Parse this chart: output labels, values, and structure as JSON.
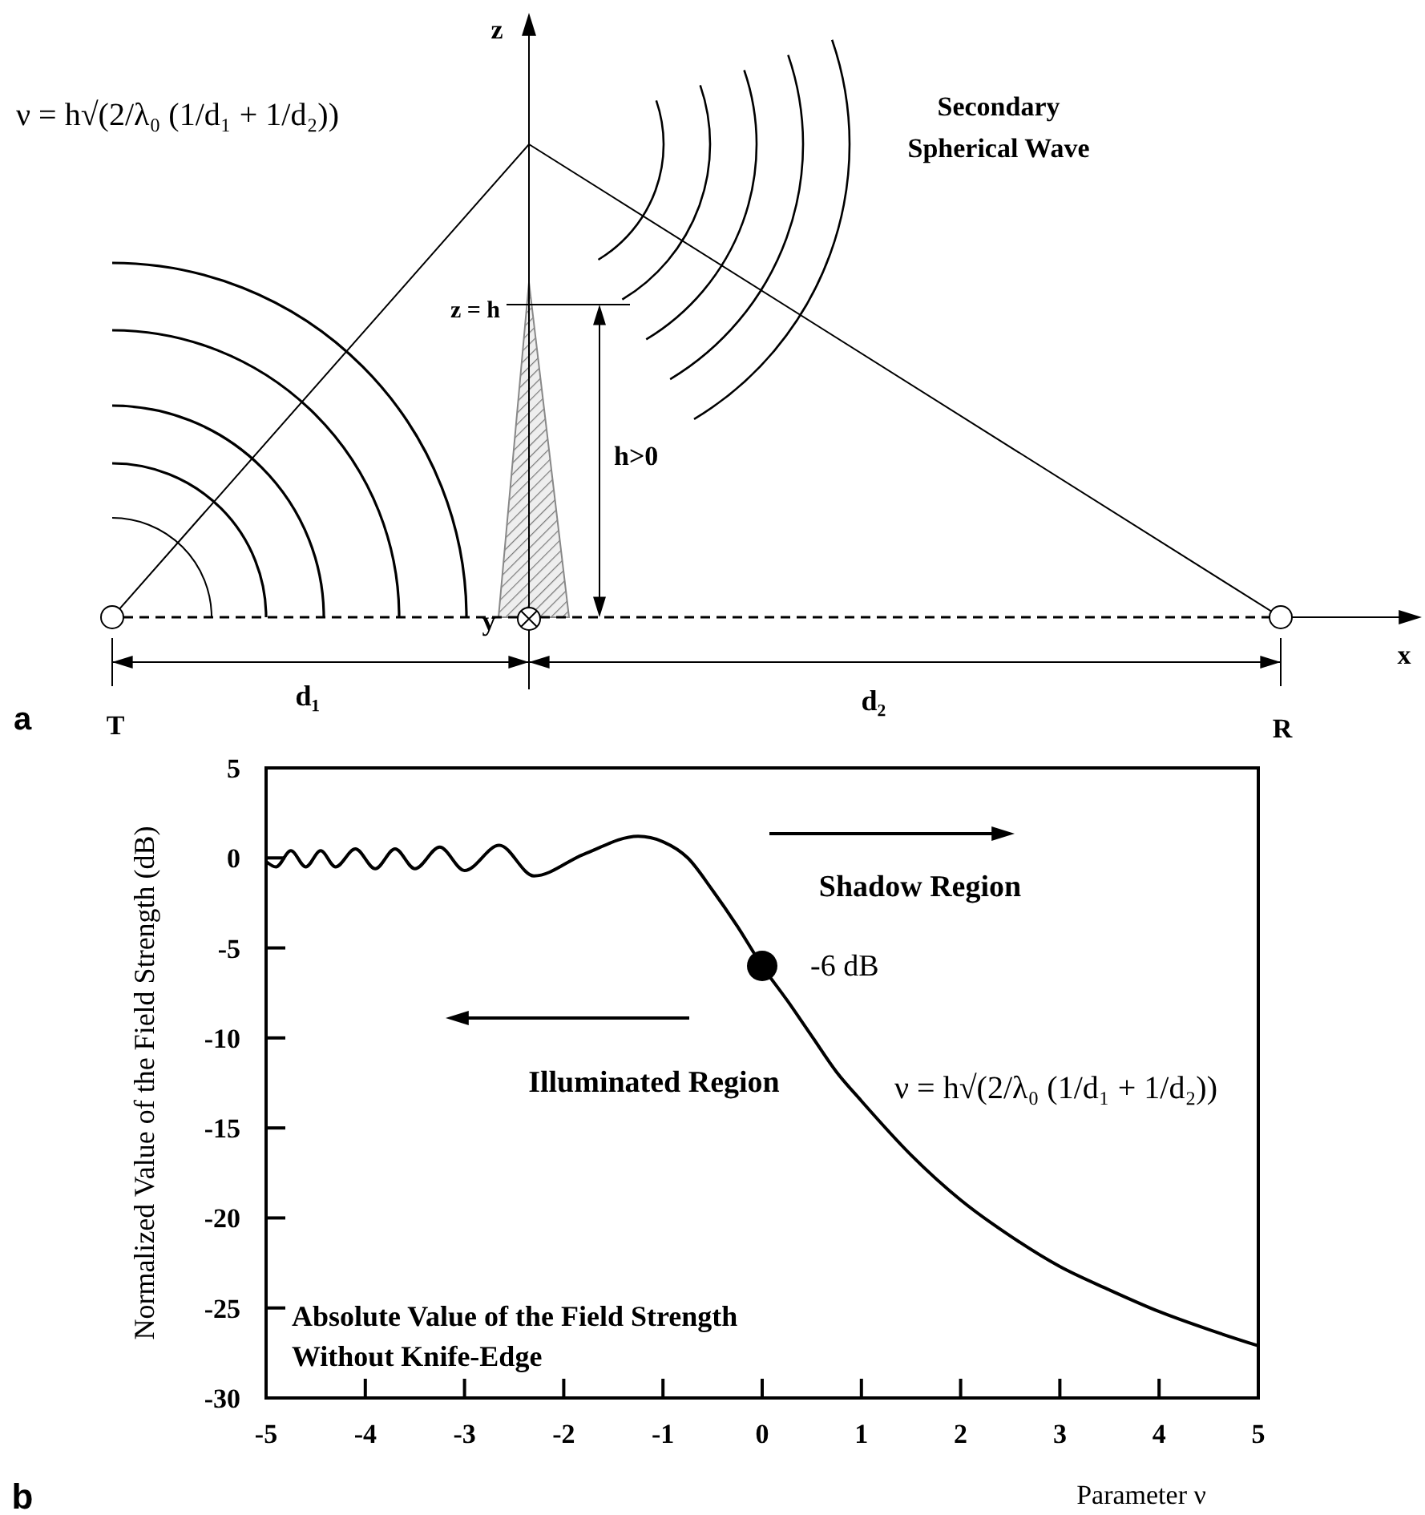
{
  "chart_data": [
    {
      "type": "other",
      "annotations": [
        "ν = h√(2/λ₀ (1/d₁ + 1/d₂))",
        "Secondary Spherical Wave",
        "z",
        "x",
        "y",
        "z = h",
        "h>0",
        "d₁",
        "d₂",
        "T",
        "R",
        "a"
      ]
    },
    {
      "type": "line",
      "xlabel": "Parameter ν",
      "ylabel": "Normalized Value of the Field Strength  (dB)",
      "xlim": [
        -5,
        5
      ],
      "xticks": [
        -5,
        -4,
        -3,
        -2,
        -1,
        0,
        1,
        2,
        3,
        4,
        5
      ],
      "ylim": [
        -30,
        5
      ],
      "yticks": [
        5,
        0,
        -5,
        -10,
        -15,
        -20,
        -25,
        -30
      ],
      "annotations": [
        "Shadow Region",
        "Illuminated Region",
        {
          "text": "-6 dB",
          "x": 0,
          "y": -6
        },
        "ν = h√(2/λ₀ (1/d₁ + 1/d₂))",
        "Absolute Value of the Field Strength Without Knife-Edge",
        "b"
      ],
      "series": [
        {
          "type": "line",
          "color": "#000000",
          "x": [
            -5,
            -4.9,
            -4.75,
            -4.6,
            -4.45,
            -4.3,
            -4.1,
            -3.9,
            -3.7,
            -3.5,
            -3.25,
            -3,
            -2.65,
            -2.3,
            -1.8,
            -1.25,
            -1,
            -0.75,
            -0.5,
            -0.25,
            0,
            0.25,
            0.5,
            0.75,
            1,
            1.5,
            2,
            2.5,
            3,
            3.5,
            4,
            4.5,
            5
          ],
          "values": [
            -0.2,
            -0.5,
            0.4,
            -0.5,
            0.4,
            -0.5,
            0.5,
            -0.6,
            0.5,
            -0.6,
            0.6,
            -0.7,
            0.7,
            -1,
            0.2,
            1.2,
            0.9,
            0,
            -1.8,
            -3.8,
            -6,
            -7.9,
            -9.9,
            -11.9,
            -13.5,
            -16.5,
            -19,
            -21,
            -22.7,
            -24,
            -25.2,
            -26.2,
            -27.1
          ]
        },
        {
          "type": "scatter",
          "color": "#000000",
          "marker": "circle",
          "x": [
            0
          ],
          "values": [
            -6
          ]
        }
      ]
    }
  ]
}
